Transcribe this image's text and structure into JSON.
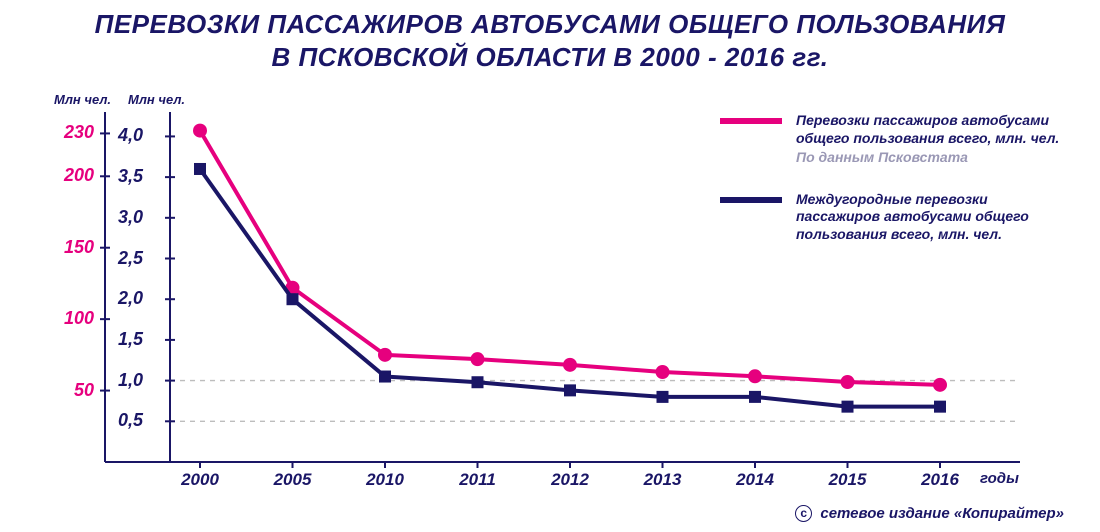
{
  "title_line1": "ПЕРЕВОЗКИ ПАССАЖИРОВ АВТОБУСАМИ ОБЩЕГО ПОЛЬЗОВАНИЯ",
  "title_line2": "В ПСКОВСКОЙ ОБЛАСТИ В  2000 - 2016 гг.",
  "chart": {
    "type": "line",
    "background_color": "#ffffff",
    "categories": [
      "2000",
      "2005",
      "2010",
      "2011",
      "2012",
      "2013",
      "2014",
      "2015",
      "2016"
    ],
    "x_axis_title": "годы",
    "left_axis": {
      "label": "Млн чел.",
      "color": "#e6007e",
      "ticks": [
        230,
        200,
        150,
        100,
        50
      ],
      "range_min": 0,
      "range_max": 245
    },
    "right_axis": {
      "label": "Млн чел.",
      "color": "#1a1666",
      "ticks": [
        "4,0",
        "3,5",
        "3,0",
        "2,5",
        "2,0",
        "1,5",
        "1,0",
        "0,5"
      ],
      "tick_values": [
        4.0,
        3.5,
        3.0,
        2.5,
        2.0,
        1.5,
        1.0,
        0.5
      ],
      "range_min": 0.0,
      "range_max": 4.3
    },
    "grid_dash_color": "#bdbdbd",
    "axis_line_color": "#1a1666",
    "series": [
      {
        "id": "total",
        "legend": "Перевозки пассажиров автобусами общего пользования всего, млн. чел.",
        "legend_note": "По данным Псковстата",
        "color": "#e6007e",
        "marker": "circle",
        "line_width": 4,
        "marker_size": 7,
        "axis": "left",
        "values": [
          232,
          122,
          75,
          72,
          68,
          63,
          60,
          56,
          54
        ]
      },
      {
        "id": "intercity",
        "legend": "Междугородные перевозки пассажиров автобусами общего пользования всего, млн. чел.",
        "legend_note": "",
        "color": "#1a1666",
        "marker": "square",
        "line_width": 4,
        "marker_size": 6,
        "axis": "right",
        "values": [
          3.6,
          2.0,
          1.05,
          0.98,
          0.88,
          0.8,
          0.8,
          0.68,
          0.68
        ]
      }
    ]
  },
  "credit": "сетевое издание «Копирайтер»"
}
